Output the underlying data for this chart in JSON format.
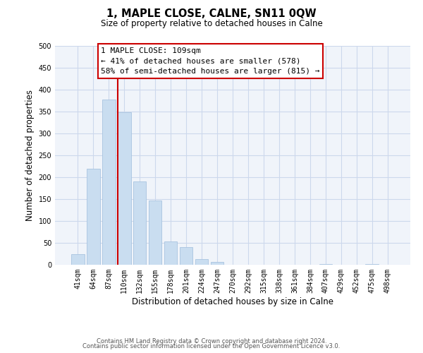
{
  "title": "1, MAPLE CLOSE, CALNE, SN11 0QW",
  "subtitle": "Size of property relative to detached houses in Calne",
  "xlabel": "Distribution of detached houses by size in Calne",
  "ylabel": "Number of detached properties",
  "bar_labels": [
    "41sqm",
    "64sqm",
    "87sqm",
    "110sqm",
    "132sqm",
    "155sqm",
    "178sqm",
    "201sqm",
    "224sqm",
    "247sqm",
    "270sqm",
    "292sqm",
    "315sqm",
    "338sqm",
    "361sqm",
    "384sqm",
    "407sqm",
    "429sqm",
    "452sqm",
    "475sqm",
    "498sqm"
  ],
  "bar_values": [
    25,
    220,
    378,
    348,
    190,
    146,
    53,
    40,
    13,
    7,
    0,
    0,
    0,
    0,
    0,
    0,
    2,
    0,
    0,
    2,
    0
  ],
  "bar_color": "#c9ddf0",
  "bar_edge_color": "#a8c4e0",
  "vline_index": 3,
  "vline_color": "#cc0000",
  "ylim": [
    0,
    500
  ],
  "yticks": [
    0,
    50,
    100,
    150,
    200,
    250,
    300,
    350,
    400,
    450,
    500
  ],
  "annotation_title": "1 MAPLE CLOSE: 109sqm",
  "annotation_line1": "← 41% of detached houses are smaller (578)",
  "annotation_line2": "58% of semi-detached houses are larger (815) →",
  "annotation_box_color": "#ffffff",
  "annotation_box_edge": "#cc0000",
  "footer1": "Contains HM Land Registry data © Crown copyright and database right 2024.",
  "footer2": "Contains public sector information licensed under the Open Government Licence v3.0.",
  "bg_color": "#f0f4fa"
}
